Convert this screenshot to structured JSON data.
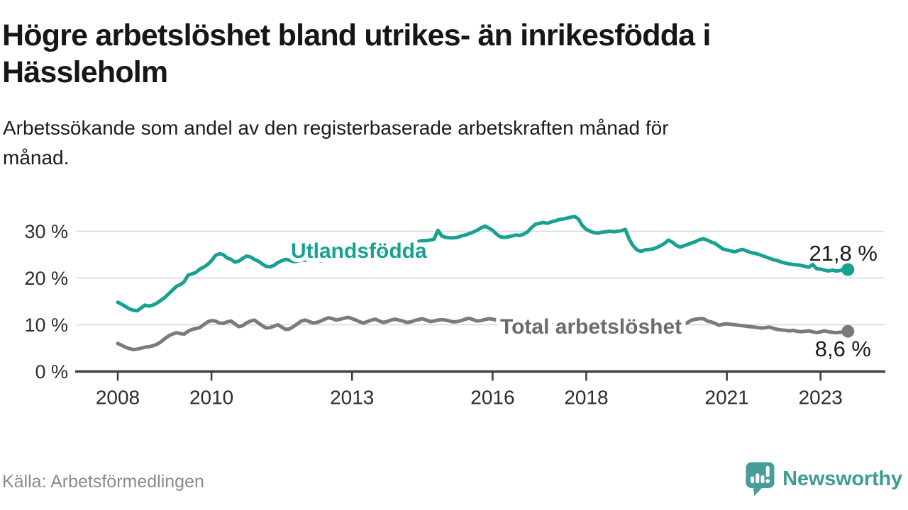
{
  "page": {
    "title_lines": [
      "Högre arbetslöshet bland utrikes- än inrikesfödda i",
      "Hässleholm"
    ],
    "subtitle_lines": [
      "Arbetssökande som andel av den registerbaserade arbetskraften månad för",
      "månad."
    ],
    "source": "Källa: Arbetsförmedlingen"
  },
  "brand": {
    "name": "Newsworthy",
    "icon": "newsworthy-speech-bubble-bar-chart-icon",
    "color": "#3f9b94"
  },
  "chart_data": {
    "type": "line",
    "frequency": "monthly",
    "period_start": "2008-01",
    "period_end": "2023-08",
    "unit": "%",
    "ylim": [
      0,
      34
    ],
    "grid": "horizontal",
    "legend_position": "inline-labels",
    "y_ticks": [
      {
        "value": 0,
        "label": "0 %"
      },
      {
        "value": 10,
        "label": "10 %"
      },
      {
        "value": 20,
        "label": "20 %"
      },
      {
        "value": 30,
        "label": "30 %"
      }
    ],
    "x_ticks": [
      {
        "year": 2008,
        "label": "2008"
      },
      {
        "year": 2010,
        "label": "2010"
      },
      {
        "year": 2013,
        "label": "2013"
      },
      {
        "year": 2016,
        "label": "2016"
      },
      {
        "year": 2018,
        "label": "2018"
      },
      {
        "year": 2021,
        "label": "2021"
      },
      {
        "year": 2023,
        "label": "2023"
      }
    ],
    "series": [
      {
        "name": "Utlandsfödda",
        "color": "#18a191",
        "label_color": "#18a191",
        "end_label": "21,8 %",
        "last_value": 21.8,
        "values": [
          14.8,
          14.4,
          13.9,
          13.4,
          13.1,
          13.0,
          13.6,
          14.2,
          14.0,
          14.2,
          14.6,
          15.2,
          15.8,
          16.6,
          17.4,
          18.2,
          18.6,
          19.2,
          20.6,
          20.9,
          21.2,
          21.9,
          22.3,
          22.9,
          23.7,
          24.8,
          25.2,
          25.0,
          24.3,
          24.0,
          23.4,
          23.6,
          24.2,
          24.7,
          24.5,
          24.0,
          23.6,
          23.0,
          22.5,
          22.4,
          22.7,
          23.3,
          23.7,
          24.0,
          23.8,
          23.5,
          23.6,
          23.8,
          23.8,
          24.0,
          24.2,
          23.9,
          23.7,
          23.8,
          24.0,
          24.2,
          24.1,
          24.0,
          24.1,
          24.2,
          24.3,
          24.5,
          24.6,
          24.8,
          25.0,
          25.2,
          25.3,
          25.5,
          25.7,
          25.9,
          26.1,
          26.3,
          26.5,
          26.8,
          27.1,
          27.4,
          27.6,
          27.8,
          28.0,
          28.0,
          28.1,
          28.3,
          30.2,
          29.0,
          28.7,
          28.6,
          28.6,
          28.7,
          29.0,
          29.2,
          29.5,
          29.8,
          30.2,
          30.7,
          31.1,
          30.7,
          30.2,
          29.4,
          28.8,
          28.7,
          28.8,
          29.0,
          29.2,
          29.1,
          29.4,
          29.9,
          30.8,
          31.5,
          31.7,
          31.9,
          31.7,
          32.0,
          32.2,
          32.5,
          32.6,
          32.8,
          33.0,
          33.2,
          32.6,
          31.2,
          30.4,
          30.0,
          29.7,
          29.6,
          29.8,
          29.9,
          30.0,
          29.9,
          30.0,
          30.1,
          30.4,
          28.3,
          26.9,
          26.0,
          25.7,
          26.0,
          26.1,
          26.2,
          26.5,
          26.9,
          27.4,
          28.1,
          27.7,
          27.0,
          26.6,
          26.9,
          27.2,
          27.5,
          27.8,
          28.2,
          28.4,
          28.1,
          27.7,
          27.4,
          26.8,
          26.2,
          26.0,
          25.8,
          25.6,
          25.9,
          26.1,
          25.8,
          25.5,
          25.3,
          25.1,
          24.8,
          24.5,
          24.2,
          23.9,
          23.7,
          23.4,
          23.2,
          23.0,
          22.9,
          22.8,
          22.7,
          22.5,
          22.3,
          22.9,
          22.0,
          21.9,
          21.7,
          21.5,
          21.7,
          21.5,
          21.6,
          21.9,
          21.8
        ]
      },
      {
        "name": "Total arbetslöshet",
        "color": "#7b7b7b",
        "label_color": "#6a6a70",
        "end_label": "8,6 %",
        "last_value": 8.6,
        "values": [
          6.0,
          5.6,
          5.2,
          4.9,
          4.7,
          4.8,
          5.0,
          5.2,
          5.3,
          5.5,
          5.8,
          6.3,
          7.0,
          7.6,
          8.0,
          8.3,
          8.1,
          8.0,
          8.6,
          9.0,
          9.2,
          9.4,
          10.0,
          10.6,
          10.9,
          10.8,
          10.4,
          10.3,
          10.6,
          10.8,
          10.2,
          9.6,
          9.8,
          10.4,
          10.8,
          11.0,
          10.4,
          9.8,
          9.3,
          9.4,
          9.7,
          10.0,
          9.5,
          9.0,
          9.1,
          9.6,
          10.2,
          10.8,
          11.0,
          10.7,
          10.4,
          10.5,
          10.8,
          11.2,
          11.5,
          11.3,
          11.0,
          11.2,
          11.4,
          11.6,
          11.3,
          11.0,
          10.6,
          10.4,
          10.7,
          11.0,
          11.2,
          10.8,
          10.5,
          10.7,
          11.0,
          11.2,
          11.0,
          10.8,
          10.5,
          10.6,
          10.9,
          11.1,
          11.3,
          11.0,
          10.7,
          10.8,
          11.0,
          11.1,
          11.0,
          10.8,
          10.6,
          10.7,
          10.9,
          11.2,
          11.4,
          11.1,
          10.8,
          10.9,
          11.1,
          11.3,
          11.2,
          11.0,
          10.9,
          10.8,
          10.7,
          10.7,
          10.6,
          10.6,
          10.5,
          10.5,
          10.4,
          10.4,
          10.3,
          10.2,
          10.2,
          10.1,
          10.0,
          10.0,
          9.9,
          9.9,
          9.8,
          9.8,
          9.7,
          9.7,
          9.6,
          9.5,
          9.5,
          9.4,
          9.4,
          9.3,
          9.3,
          9.2,
          9.2,
          9.1,
          9.1,
          9.0,
          9.0,
          8.9,
          8.9,
          8.9,
          9.0,
          9.0,
          9.1,
          9.1,
          9.2,
          9.3,
          9.4,
          9.6,
          9.8,
          10.1,
          10.5,
          11.0,
          11.2,
          11.3,
          11.3,
          10.8,
          10.6,
          10.3,
          9.9,
          10.1,
          10.2,
          10.1,
          10.0,
          9.9,
          9.8,
          9.7,
          9.6,
          9.5,
          9.4,
          9.3,
          9.4,
          9.5,
          9.2,
          9.0,
          8.9,
          8.8,
          8.7,
          8.8,
          8.6,
          8.5,
          8.6,
          8.7,
          8.5,
          8.3,
          8.5,
          8.7,
          8.5,
          8.4,
          8.3,
          8.4,
          8.5,
          8.6
        ]
      }
    ]
  }
}
